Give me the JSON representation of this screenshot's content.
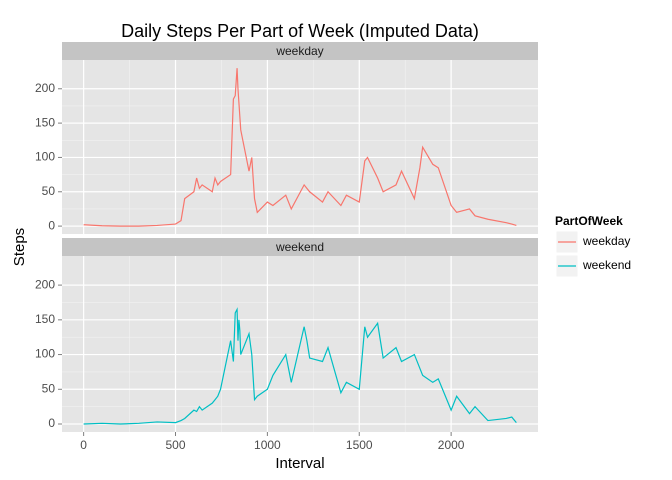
{
  "chart_data": {
    "type": "line",
    "title": "Daily Steps Per Part of Week (Imputed Data)",
    "xlabel": "Interval",
    "ylabel": "Steps",
    "legend_title": "PartOfWeek",
    "x": [
      0,
      100,
      200,
      300,
      400,
      500,
      530,
      550,
      600,
      615,
      630,
      645,
      700,
      715,
      730,
      745,
      800,
      815,
      825,
      835,
      840,
      845,
      850,
      855,
      900,
      915,
      930,
      945,
      1000,
      1030,
      1100,
      1130,
      1200,
      1215,
      1230,
      1300,
      1330,
      1400,
      1430,
      1500,
      1530,
      1545,
      1600,
      1630,
      1700,
      1730,
      1800,
      1830,
      1845,
      1900,
      1930,
      2000,
      2030,
      2100,
      2130,
      2200,
      2300,
      2330,
      2355
    ],
    "series": [
      {
        "name": "weekday",
        "color": "#f8766d",
        "values": [
          2,
          0.5,
          0,
          0,
          1,
          3,
          8,
          40,
          50,
          70,
          55,
          60,
          50,
          70,
          60,
          65,
          75,
          185,
          190,
          230,
          200,
          180,
          160,
          140,
          80,
          100,
          40,
          20,
          35,
          30,
          45,
          25,
          60,
          55,
          50,
          35,
          50,
          30,
          45,
          35,
          95,
          100,
          70,
          50,
          60,
          80,
          40,
          85,
          115,
          90,
          85,
          30,
          20,
          25,
          15,
          10,
          5,
          3,
          1
        ]
      },
      {
        "name": "weekend",
        "color": "#00bfc4",
        "values": [
          0,
          1,
          0,
          1,
          3,
          2,
          5,
          8,
          20,
          18,
          25,
          20,
          30,
          35,
          40,
          50,
          120,
          90,
          160,
          165,
          120,
          150,
          135,
          100,
          130,
          100,
          35,
          40,
          50,
          70,
          100,
          60,
          140,
          120,
          95,
          90,
          110,
          45,
          60,
          50,
          140,
          125,
          145,
          95,
          110,
          90,
          100,
          80,
          70,
          60,
          65,
          20,
          40,
          15,
          25,
          5,
          8,
          10,
          2
        ]
      }
    ],
    "xlim": [
      -117.75,
      2472.75
    ],
    "xticks": [
      0,
      500,
      1000,
      1500,
      2000
    ],
    "ylim": [
      -11.5,
      241.9
    ],
    "yticks": [
      0,
      50,
      100,
      150,
      200
    ],
    "grid": true,
    "legend": "right"
  }
}
